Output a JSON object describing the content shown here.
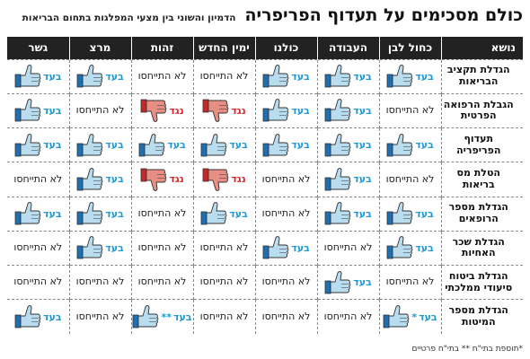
{
  "title": "כולם מסכימים על תעדוף הפריפריה",
  "subtitle": "הדמיון והשוני בין מצעי המפלגות בתחום הבריאות",
  "columns": [
    "נושא",
    "כחול לבן",
    "העבודה",
    "כולנו",
    "ימין החדש",
    "זהות",
    "מרצ",
    "גשר"
  ],
  "labels": {
    "for": "בעד",
    "against": "נגד",
    "na": "לא התייחסו"
  },
  "colors": {
    "for": "#1f9ad6",
    "against": "#d9272e",
    "thumb_up_fill": "#b9dcef",
    "thumb_down_fill": "#e88f85"
  },
  "rows": [
    {
      "topic": "הגדלת תקציב הבריאות",
      "cells": [
        {
          "v": "for"
        },
        {
          "v": "for"
        },
        {
          "v": "for"
        },
        {
          "v": "na"
        },
        {
          "v": "na"
        },
        {
          "v": "for"
        },
        {
          "v": "for"
        }
      ]
    },
    {
      "topic": "הגבלת הרפואה הפרטית",
      "cells": [
        {
          "v": "na"
        },
        {
          "v": "for"
        },
        {
          "v": "for"
        },
        {
          "v": "against"
        },
        {
          "v": "against"
        },
        {
          "v": "na"
        },
        {
          "v": "for"
        }
      ]
    },
    {
      "topic": "תעדוף הפריפריה",
      "cells": [
        {
          "v": "for"
        },
        {
          "v": "for"
        },
        {
          "v": "for"
        },
        {
          "v": "for"
        },
        {
          "v": "for"
        },
        {
          "v": "for"
        },
        {
          "v": "for"
        }
      ]
    },
    {
      "topic": "הטלת מס בריאות",
      "cells": [
        {
          "v": "na"
        },
        {
          "v": "for"
        },
        {
          "v": "na"
        },
        {
          "v": "against"
        },
        {
          "v": "against"
        },
        {
          "v": "for"
        },
        {
          "v": "na"
        }
      ]
    },
    {
      "topic": "הגדלת מספר הרופאים",
      "cells": [
        {
          "v": "for"
        },
        {
          "v": "for"
        },
        {
          "v": "na"
        },
        {
          "v": "for"
        },
        {
          "v": "na"
        },
        {
          "v": "for"
        },
        {
          "v": "for"
        }
      ]
    },
    {
      "topic": "הגדלת שכר האחיות",
      "cells": [
        {
          "v": "for"
        },
        {
          "v": "na"
        },
        {
          "v": "for"
        },
        {
          "v": "na"
        },
        {
          "v": "na"
        },
        {
          "v": "for"
        },
        {
          "v": "na"
        }
      ]
    },
    {
      "topic": "הגדלת ביטוח סיעודי ממלכתי",
      "cells": [
        {
          "v": "na"
        },
        {
          "v": "for"
        },
        {
          "v": "na"
        },
        {
          "v": "na"
        },
        {
          "v": "na"
        },
        {
          "v": "na"
        },
        {
          "v": "na"
        }
      ]
    },
    {
      "topic": "הגדלת מספר המיטות",
      "cells": [
        {
          "v": "for",
          "mark": "*"
        },
        {
          "v": "na"
        },
        {
          "v": "na"
        },
        {
          "v": "na"
        },
        {
          "v": "for",
          "mark": "**"
        },
        {
          "v": "na"
        },
        {
          "v": "for"
        }
      ]
    }
  ],
  "footnote": "*תוספת בתי\"ח ** בתי\"ח פרטיים"
}
